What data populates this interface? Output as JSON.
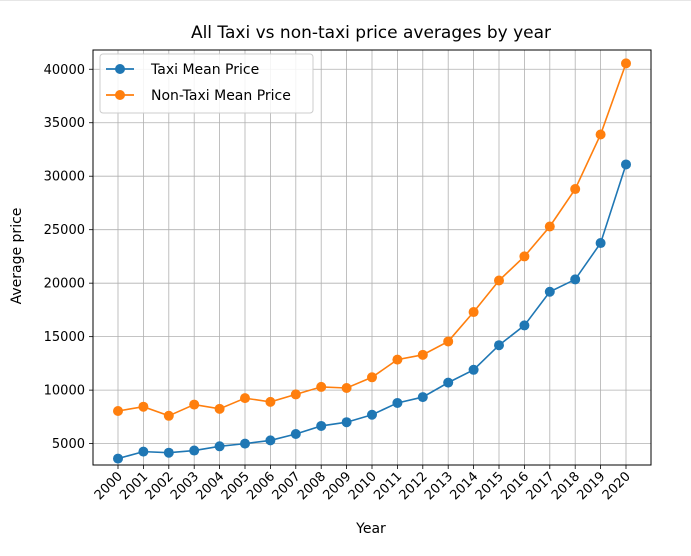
{
  "chart_data": {
    "type": "line",
    "title": "All Taxi vs non-taxi price averages by year",
    "xlabel": "Year",
    "ylabel": "Average price",
    "ylim": [
      3000,
      41800
    ],
    "yticks": [
      5000,
      10000,
      15000,
      20000,
      25000,
      30000,
      35000,
      40000
    ],
    "grid": true,
    "legend": "top-left",
    "x": [
      "2000",
      "2001",
      "2002",
      "2003",
      "2004",
      "2005",
      "2006",
      "2007",
      "2008",
      "2009",
      "2010",
      "2011",
      "2012",
      "2013",
      "2014",
      "2015",
      "2016",
      "2017",
      "2018",
      "2019",
      "2020"
    ],
    "series": [
      {
        "name": "Taxi Mean Price",
        "color": "#1f77b4",
        "values": [
          3600,
          4250,
          4150,
          4350,
          4750,
          5000,
          5300,
          5900,
          6650,
          7000,
          7700,
          8800,
          9350,
          10700,
          11900,
          14200,
          16050,
          19200,
          20350,
          23750,
          31100
        ]
      },
      {
        "name": "Non-Taxi Mean Price",
        "color": "#ff7f0e",
        "values": [
          8050,
          8450,
          7600,
          8650,
          8250,
          9250,
          8900,
          9600,
          10300,
          10200,
          11200,
          12850,
          13300,
          14550,
          17300,
          20250,
          22500,
          25300,
          28800,
          33900,
          40550
        ]
      }
    ]
  }
}
